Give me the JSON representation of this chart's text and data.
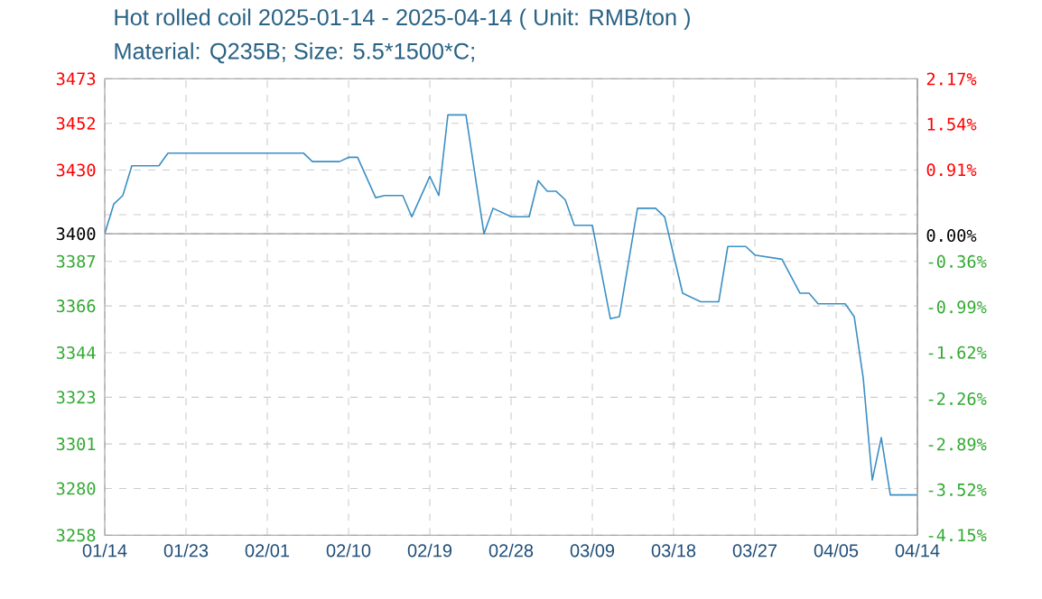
{
  "chart_data": {
    "type": "line",
    "title": "Hot rolled coil 2025-01-14 - 2025-04-14     ( Unit: RMB/ton )",
    "subtitle": "Material: Q235B; Size: 5.5*1500*C;",
    "x": [
      "2025-01-14",
      "2025-01-15",
      "2025-01-16",
      "2025-01-17",
      "2025-01-20",
      "2025-01-21",
      "2025-02-05",
      "2025-02-06",
      "2025-02-09",
      "2025-02-10",
      "2025-02-11",
      "2025-02-13",
      "2025-02-14",
      "2025-02-16",
      "2025-02-17",
      "2025-02-19",
      "2025-02-20",
      "2025-02-21",
      "2025-02-23",
      "2025-02-25",
      "2025-02-26",
      "2025-02-28",
      "2025-03-02",
      "2025-03-03",
      "2025-03-04",
      "2025-03-05",
      "2025-03-06",
      "2025-03-07",
      "2025-03-09",
      "2025-03-11",
      "2025-03-12",
      "2025-03-14",
      "2025-03-16",
      "2025-03-17",
      "2025-03-19",
      "2025-03-21",
      "2025-03-23",
      "2025-03-24",
      "2025-03-26",
      "2025-03-27",
      "2025-03-30",
      "2025-04-01",
      "2025-04-02",
      "2025-04-03",
      "2025-04-06",
      "2025-04-07",
      "2025-04-08",
      "2025-04-09",
      "2025-04-10",
      "2025-04-11",
      "2025-04-14"
    ],
    "series": [
      {
        "color": "#3b8fc4",
        "values": [
          3400,
          3414,
          3418,
          3432,
          3432,
          3438,
          3438,
          3434,
          3434,
          3436,
          3436,
          3417,
          3418,
          3418,
          3408,
          3427,
          3418,
          3456,
          3456,
          3400,
          3412,
          3408,
          3408,
          3425,
          3420,
          3420,
          3416,
          3404,
          3404,
          3360,
          3361,
          3412,
          3412,
          3408,
          3372,
          3368,
          3368,
          3394,
          3394,
          3390,
          3388,
          3372,
          3372,
          3367,
          3367,
          3361,
          3332,
          3284,
          3304,
          3277,
          3277
        ]
      }
    ],
    "xlim": [
      "2025-01-14",
      "2025-04-14"
    ],
    "xticks": [
      {
        "value": "2025-01-14",
        "label": "01/14"
      },
      {
        "value": "2025-01-23",
        "label": "01/23"
      },
      {
        "value": "2025-02-01",
        "label": "02/01"
      },
      {
        "value": "2025-02-10",
        "label": "02/10"
      },
      {
        "value": "2025-02-19",
        "label": "02/19"
      },
      {
        "value": "2025-02-28",
        "label": "02/28"
      },
      {
        "value": "2025-03-09",
        "label": "03/09"
      },
      {
        "value": "2025-03-18",
        "label": "03/18"
      },
      {
        "value": "2025-03-27",
        "label": "03/27"
      },
      {
        "value": "2025-04-05",
        "label": "04/05"
      },
      {
        "value": "2025-04-14",
        "label": "04/14"
      }
    ],
    "ylim": [
      3258,
      3473
    ],
    "yticks": [
      3473,
      3452,
      3430,
      {
        "value": 3409,
        "label": null
      },
      3400,
      3387,
      3366,
      3344,
      3323,
      3301,
      3280,
      3258
    ],
    "y2lim": [
      -4.15,
      2.17
    ],
    "y2ticks": [
      {
        "value": 2.17,
        "label": "2.17%"
      },
      {
        "value": 1.54,
        "label": "1.54%"
      },
      {
        "value": 0.91,
        "label": "0.91%"
      },
      {
        "value": 0,
        "label": "0.00%"
      },
      {
        "value": -0.36,
        "label": "-0.36%"
      },
      {
        "value": -0.99,
        "label": "-0.99%"
      },
      {
        "value": -1.62,
        "label": "-1.62%"
      },
      {
        "value": -2.26,
        "label": "-2.26%"
      },
      {
        "value": -2.89,
        "label": "-2.89%"
      },
      {
        "value": -3.52,
        "label": "-3.52%"
      },
      {
        "value": -4.15,
        "label": "-4.15%"
      }
    ],
    "ref_lines": [
      {
        "axis": "y",
        "value": 3400,
        "color": "#999999"
      }
    ],
    "grid": true,
    "marker": "none"
  }
}
